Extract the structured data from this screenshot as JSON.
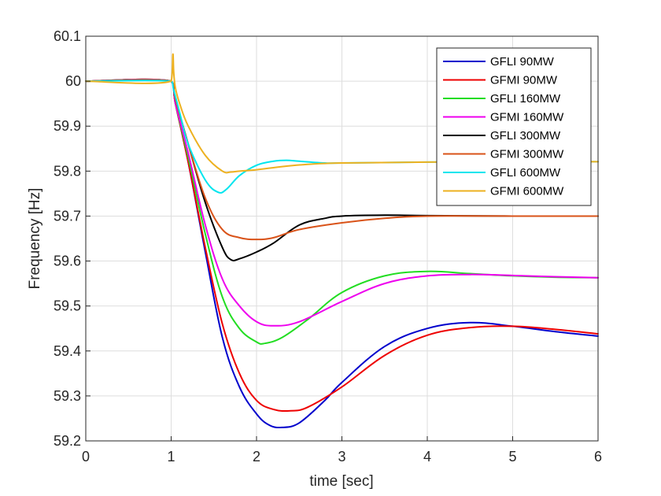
{
  "chart_data": {
    "type": "line",
    "xlabel": "time [sec]",
    "ylabel": "Frequency [Hz]",
    "xlim": [
      0,
      6
    ],
    "ylim": [
      59.2,
      60.1
    ],
    "xticks": [
      "0",
      "1",
      "2",
      "3",
      "4",
      "5",
      "6"
    ],
    "yticks": [
      "59.2",
      "59.3",
      "59.4",
      "59.5",
      "59.6",
      "59.7",
      "59.8",
      "59.9",
      "60",
      "60.1"
    ],
    "grid": true,
    "legend_position": "top-right",
    "series": [
      {
        "name": "GFLI 90MW",
        "color": "#0000cc",
        "x": [
          0,
          1.0,
          1.05,
          1.2,
          1.4,
          1.6,
          1.8,
          2.0,
          2.15,
          2.3,
          2.5,
          2.8,
          3.0,
          3.5,
          4.0,
          4.5,
          5.0,
          5.5,
          6.0
        ],
        "y": [
          60.0,
          60.0,
          59.95,
          59.82,
          59.62,
          59.43,
          59.32,
          59.26,
          59.235,
          59.23,
          59.24,
          59.29,
          59.33,
          59.41,
          59.45,
          59.463,
          59.455,
          59.443,
          59.433
        ]
      },
      {
        "name": "GFMI 90MW",
        "color": "#ee0000",
        "x": [
          0,
          1.0,
          1.05,
          1.2,
          1.4,
          1.6,
          1.8,
          2.0,
          2.2,
          2.4,
          2.6,
          3.0,
          3.5,
          4.0,
          4.5,
          5.0,
          5.5,
          6.0
        ],
        "y": [
          60.0,
          60.0,
          59.95,
          59.82,
          59.63,
          59.46,
          59.35,
          59.29,
          59.27,
          59.267,
          59.275,
          59.32,
          59.39,
          59.435,
          59.452,
          59.455,
          59.448,
          59.438
        ]
      },
      {
        "name": "GFLI 160MW",
        "color": "#22dd22",
        "x": [
          0,
          1.0,
          1.05,
          1.2,
          1.4,
          1.6,
          1.8,
          2.0,
          2.1,
          2.3,
          2.6,
          3.0,
          3.5,
          4.0,
          4.5,
          5.0,
          5.5,
          6.0
        ],
        "y": [
          60.0,
          60.0,
          59.95,
          59.83,
          59.66,
          59.52,
          59.45,
          59.42,
          59.417,
          59.43,
          59.47,
          59.53,
          59.567,
          59.577,
          59.572,
          59.567,
          59.564,
          59.563
        ]
      },
      {
        "name": "GFMI 160MW",
        "color": "#ee00ee",
        "x": [
          0,
          1.0,
          1.05,
          1.2,
          1.4,
          1.6,
          1.8,
          2.0,
          2.2,
          2.5,
          3.0,
          3.5,
          4.0,
          4.5,
          5.0,
          5.5,
          6.0
        ],
        "y": [
          60.0,
          60.0,
          59.95,
          59.84,
          59.68,
          59.56,
          59.5,
          59.465,
          59.456,
          59.465,
          59.51,
          59.55,
          59.567,
          59.57,
          59.568,
          59.565,
          59.563
        ]
      },
      {
        "name": "GFLI 300MW",
        "color": "#000000",
        "x": [
          0,
          1.0,
          1.05,
          1.2,
          1.4,
          1.6,
          1.7,
          1.8,
          2.0,
          2.2,
          2.5,
          2.8,
          3.0,
          3.5,
          4.0,
          5.0,
          6.0
        ],
        "y": [
          60.0,
          60.0,
          59.96,
          59.86,
          59.73,
          59.63,
          59.603,
          59.605,
          59.62,
          59.64,
          59.68,
          59.695,
          59.7,
          59.702,
          59.701,
          59.7,
          59.7
        ]
      },
      {
        "name": "GFMI 300MW",
        "color": "#d95319",
        "x": [
          0,
          1.0,
          1.05,
          1.2,
          1.4,
          1.6,
          1.8,
          2.0,
          2.2,
          2.5,
          3.0,
          3.5,
          4.0,
          5.0,
          6.0
        ],
        "y": [
          60.0,
          60.0,
          59.96,
          59.86,
          59.74,
          59.67,
          59.652,
          59.648,
          59.652,
          59.67,
          59.685,
          59.695,
          59.7,
          59.7,
          59.7
        ]
      },
      {
        "name": "GFLI 600MW",
        "color": "#00e5ee",
        "x": [
          0,
          1.0,
          1.03,
          1.1,
          1.2,
          1.4,
          1.55,
          1.65,
          1.8,
          2.0,
          2.2,
          2.35,
          2.5,
          2.8,
          3.0,
          4.0,
          5.0,
          6.0
        ],
        "y": [
          60.0,
          60.0,
          59.98,
          59.93,
          59.86,
          59.78,
          59.753,
          59.76,
          59.79,
          59.813,
          59.822,
          59.824,
          59.822,
          59.818,
          59.818,
          59.82,
          59.821,
          59.821
        ]
      },
      {
        "name": "GFMI 600MW",
        "color": "#edb120",
        "x": [
          0,
          1.0,
          1.02,
          1.03,
          1.05,
          1.1,
          1.2,
          1.4,
          1.6,
          1.7,
          1.8,
          2.0,
          2.3,
          2.6,
          3.0,
          4.0,
          5.0,
          6.0
        ],
        "y": [
          60.0,
          60.0,
          60.06,
          60.02,
          59.985,
          59.95,
          59.9,
          59.835,
          59.8,
          59.798,
          59.8,
          59.803,
          59.81,
          59.815,
          59.818,
          59.82,
          59.821,
          59.821
        ]
      }
    ]
  }
}
